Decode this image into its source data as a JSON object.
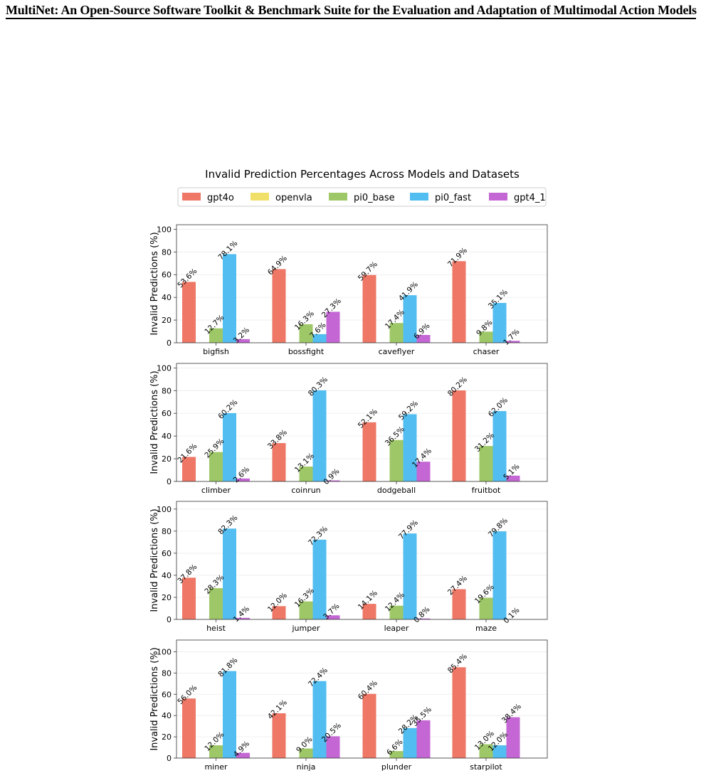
{
  "header": {
    "running_title": "MultiNet: An Open-Source Software Toolkit & Benchmark Suite for the Evaluation and Adaptation of Multimodal Action Models"
  },
  "chart_data": {
    "type": "bar",
    "title": "Invalid Prediction Percentages Across Models and Datasets",
    "ylabel": "Invalid Predictions (%)",
    "legend_position": "top-center",
    "grid": true,
    "series": [
      {
        "name": "gpt4o",
        "color": "#ee7766"
      },
      {
        "name": "openvla",
        "color": "#f0e06a"
      },
      {
        "name": "pi0_base",
        "color": "#9ec867"
      },
      {
        "name": "pi0_fast",
        "color": "#52bdf0"
      },
      {
        "name": "gpt4_1",
        "color": "#c466d4"
      }
    ],
    "panels": [
      {
        "ylim": [
          0,
          104
        ],
        "yticks": [
          0,
          20,
          40,
          60,
          80,
          100
        ],
        "categories": [
          "bigfish",
          "bossfight",
          "caveflyer",
          "chaser"
        ],
        "values": {
          "gpt4o": [
            53.6,
            64.9,
            59.7,
            71.9
          ],
          "openvla": [
            0,
            0,
            0,
            0
          ],
          "pi0_base": [
            12.7,
            16.3,
            17.4,
            9.8
          ],
          "pi0_fast": [
            78.1,
            7.6,
            41.9,
            35.1
          ],
          "gpt4_1": [
            3.2,
            27.3,
            6.9,
            1.7
          ]
        },
        "labels": {
          "gpt4o": [
            "53.6%",
            "64.9%",
            "59.7%",
            "71.9%"
          ],
          "openvla": [
            "",
            "",
            "",
            ""
          ],
          "pi0_base": [
            "12.7%",
            "16.3%",
            "17.4%",
            "9.8%"
          ],
          "pi0_fast": [
            "78.1%",
            "7.6%",
            "41.9%",
            "35.1%"
          ],
          "gpt4_1": [
            "3.2%",
            "27.3%",
            "6.9%",
            "1.7%"
          ]
        }
      },
      {
        "ylim": [
          0,
          104
        ],
        "yticks": [
          0,
          20,
          40,
          60,
          80,
          100
        ],
        "categories": [
          "climber",
          "coinrun",
          "dodgeball",
          "fruitbot"
        ],
        "values": {
          "gpt4o": [
            21.6,
            33.8,
            52.1,
            80.2
          ],
          "openvla": [
            0,
            0,
            0,
            0
          ],
          "pi0_base": [
            25.9,
            13.1,
            36.5,
            31.2
          ],
          "pi0_fast": [
            60.2,
            80.3,
            59.2,
            62.0
          ],
          "gpt4_1": [
            2.6,
            0.9,
            17.4,
            5.1
          ]
        },
        "labels": {
          "gpt4o": [
            "21.6%",
            "33.8%",
            "52.1%",
            "80.2%"
          ],
          "openvla": [
            "",
            "",
            "",
            ""
          ],
          "pi0_base": [
            "25.9%",
            "13.1%",
            "36.5%",
            "31.2%"
          ],
          "pi0_fast": [
            "60.2%",
            "80.3%",
            "59.2%",
            "62.0%"
          ],
          "gpt4_1": [
            "2.6%",
            "0.9%",
            "17.4%",
            "5.1%"
          ]
        }
      },
      {
        "ylim": [
          0,
          107
        ],
        "yticks": [
          0,
          20,
          40,
          60,
          80,
          100
        ],
        "categories": [
          "heist",
          "jumper",
          "leaper",
          "maze"
        ],
        "values": {
          "gpt4o": [
            37.8,
            12.0,
            14.1,
            27.4
          ],
          "openvla": [
            0,
            0,
            0,
            0
          ],
          "pi0_base": [
            28.3,
            16.3,
            12.4,
            19.6
          ],
          "pi0_fast": [
            82.3,
            72.3,
            77.9,
            79.8
          ],
          "gpt4_1": [
            1.4,
            3.7,
            0.8,
            0.1
          ]
        },
        "labels": {
          "gpt4o": [
            "37.8%",
            "12.0%",
            "14.1%",
            "27.4%"
          ],
          "openvla": [
            "",
            "",
            "",
            ""
          ],
          "pi0_base": [
            "28.3%",
            "16.3%",
            "12.4%",
            "19.6%"
          ],
          "pi0_fast": [
            "82.3%",
            "72.3%",
            "77.9%",
            "79.8%"
          ],
          "gpt4_1": [
            "1.4%",
            "3.7%",
            "0.8%",
            "0.1%"
          ]
        }
      },
      {
        "ylim": [
          0,
          111
        ],
        "yticks": [
          0,
          20,
          40,
          60,
          80,
          100
        ],
        "categories": [
          "miner",
          "ninja",
          "plunder",
          "starpilot"
        ],
        "values": {
          "gpt4o": [
            56.0,
            42.1,
            60.4,
            85.4
          ],
          "openvla": [
            0,
            0,
            0,
            0
          ],
          "pi0_base": [
            12.0,
            9.0,
            6.6,
            13.0
          ],
          "pi0_fast": [
            81.8,
            72.4,
            28.2,
            12.0
          ],
          "gpt4_1": [
            4.9,
            20.5,
            35.5,
            38.4
          ]
        },
        "labels": {
          "gpt4o": [
            "56.0%",
            "42.1%",
            "60.4%",
            "85.4%"
          ],
          "openvla": [
            "",
            "",
            "",
            ""
          ],
          "pi0_base": [
            "12.0%",
            "9.0%",
            "6.6%",
            "13.0%"
          ],
          "pi0_fast": [
            "81.8%",
            "72.4%",
            "28.2%",
            "12.0%"
          ],
          "gpt4_1": [
            "4.9%",
            "20.5%",
            "35.5%",
            "38.4%"
          ]
        }
      }
    ]
  }
}
